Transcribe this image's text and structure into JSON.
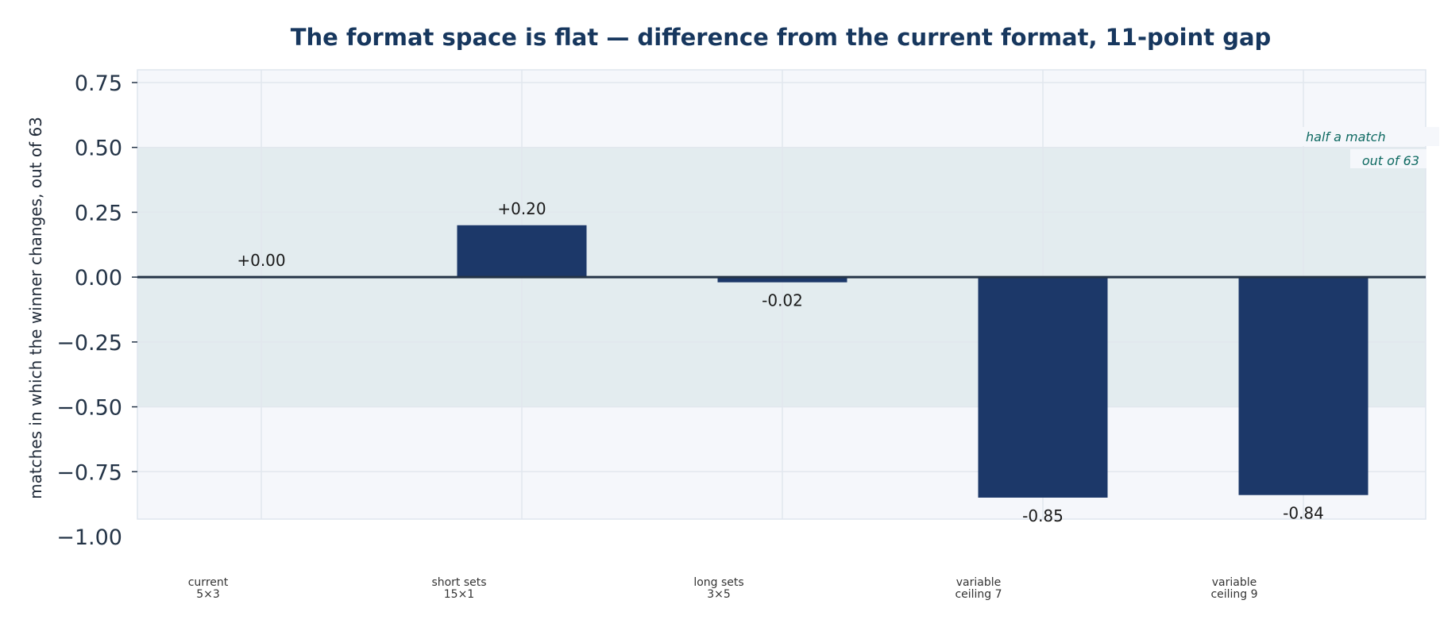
{
  "chart_data": {
    "type": "bar",
    "title": "The format space is flat — difference from the current format, 11-point gap",
    "ylabel": "matches in which the winner changes, out of 63",
    "xlabel": "",
    "categories": [
      [
        "current",
        "5×3"
      ],
      [
        "short sets",
        "15×1"
      ],
      [
        "long sets",
        "3×5"
      ],
      [
        "variable",
        "ceiling 7"
      ],
      [
        "variable",
        "ceiling 9"
      ]
    ],
    "values": [
      0.0,
      0.2,
      -0.02,
      -0.85,
      -0.84
    ],
    "value_labels": [
      "+0.00",
      "+0.20",
      "-0.02",
      "-0.85",
      "-0.84"
    ],
    "ylim": [
      -1.0,
      0.8
    ],
    "yticks": [
      0.75,
      0.5,
      0.25,
      0.0,
      -0.25,
      -0.5,
      -0.75,
      -1.0
    ],
    "ytick_labels": [
      "0.75",
      "0.50",
      "0.25",
      "0.00",
      "−0.25",
      "−0.50",
      "−0.75",
      "−1.00"
    ],
    "band": [
      -0.5,
      0.5
    ],
    "band_annotation": [
      "half a match",
      "out of 63"
    ],
    "grid": true,
    "colors": {
      "bar": "#1c3869",
      "title": "#17375e",
      "plot_bg": "#f5f7fb",
      "band": "#e3ecef",
      "grid": "#e2e7ee",
      "zero_line": "#243447",
      "annotation": "#0f6a62"
    }
  }
}
